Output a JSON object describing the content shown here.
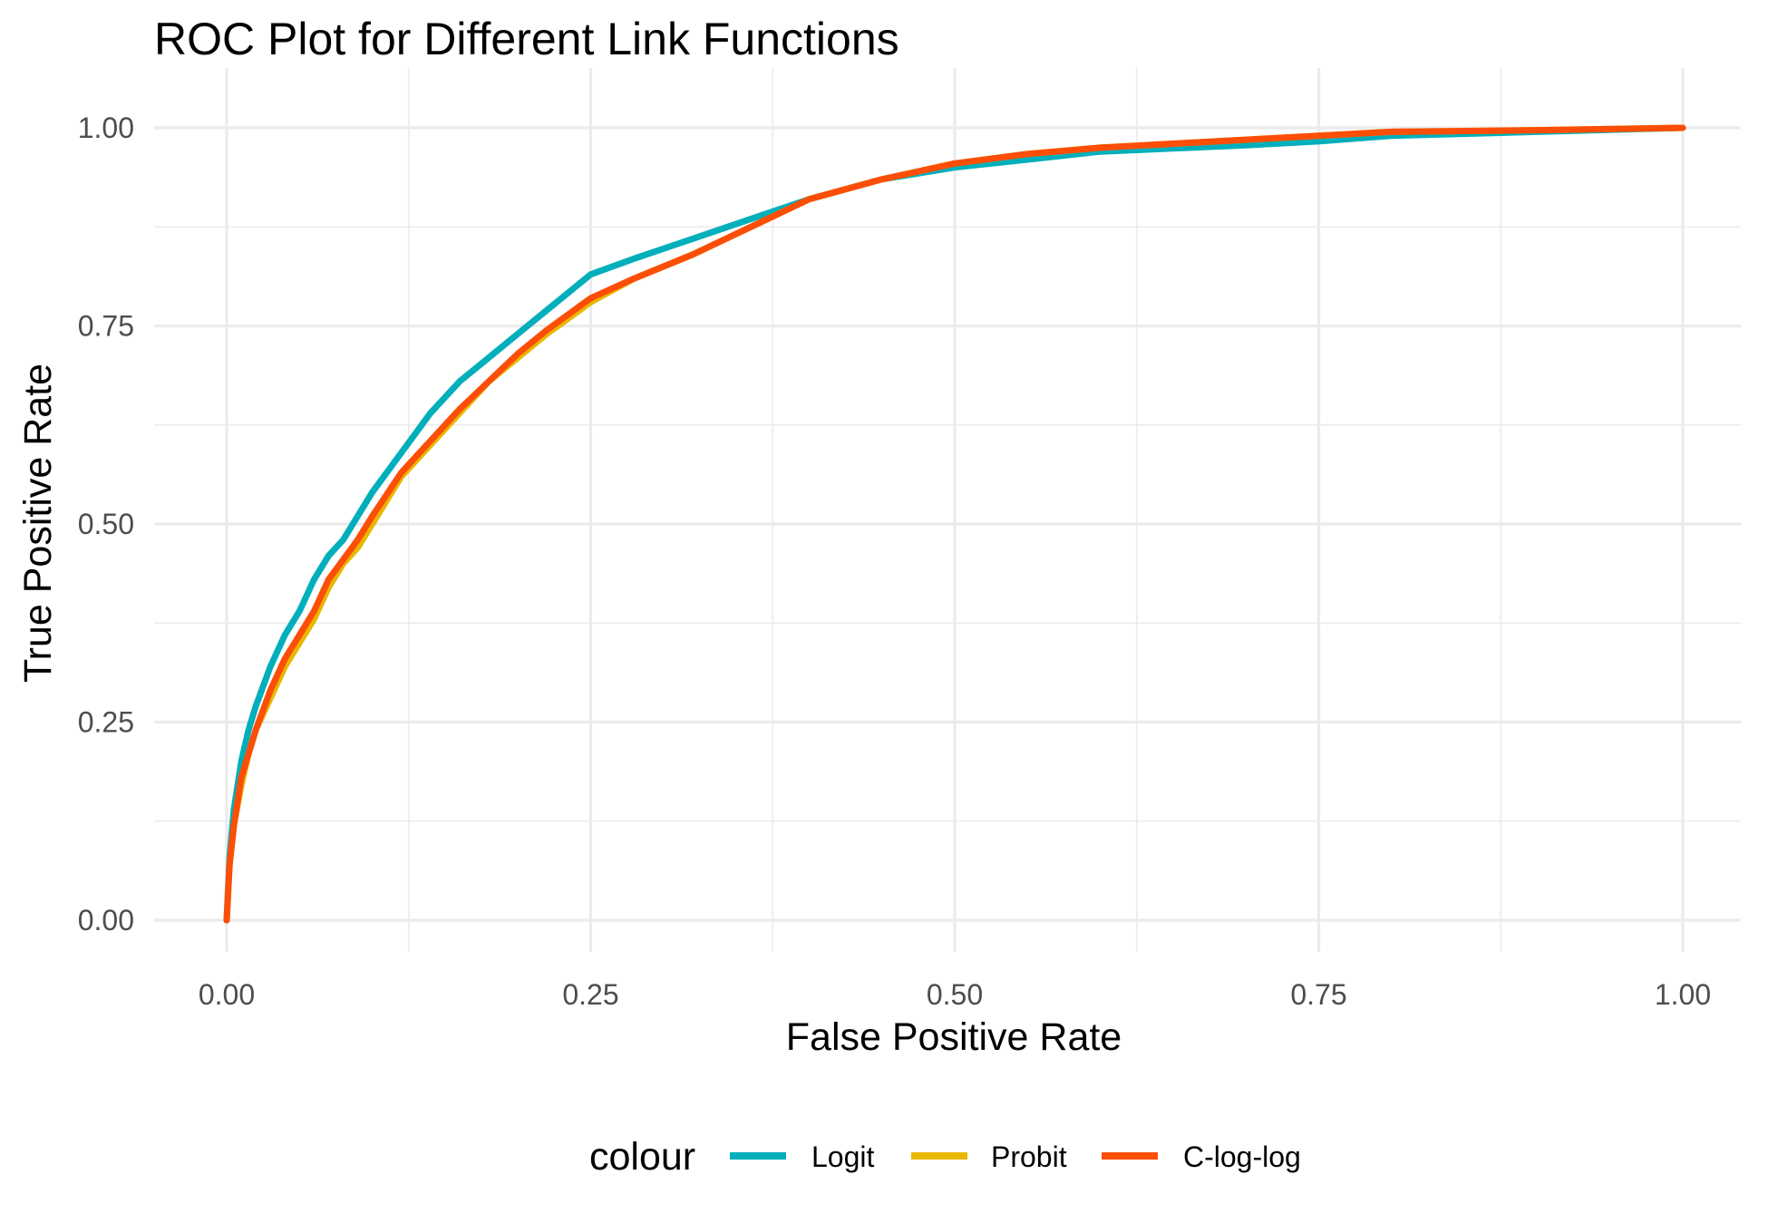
{
  "chart_data": {
    "type": "line",
    "title": "ROC Plot for Different Link Functions",
    "xlabel": "False Positive Rate",
    "ylabel": "True Positive Rate",
    "xlim": [
      0,
      1
    ],
    "ylim": [
      0,
      1
    ],
    "x_ticks": [
      "0.00",
      "0.25",
      "0.50",
      "0.75",
      "1.00"
    ],
    "y_ticks": [
      "0.00",
      "0.25",
      "0.50",
      "0.75",
      "1.00"
    ],
    "grid": true,
    "legend": {
      "title": "colour",
      "position": "bottom"
    },
    "series": [
      {
        "name": "Logit",
        "color": "#00AFBB",
        "points": [
          [
            0.0,
            0.0
          ],
          [
            0.002,
            0.08
          ],
          [
            0.005,
            0.14
          ],
          [
            0.01,
            0.2
          ],
          [
            0.015,
            0.24
          ],
          [
            0.02,
            0.27
          ],
          [
            0.03,
            0.32
          ],
          [
            0.04,
            0.36
          ],
          [
            0.05,
            0.39
          ],
          [
            0.06,
            0.43
          ],
          [
            0.07,
            0.46
          ],
          [
            0.08,
            0.48
          ],
          [
            0.09,
            0.51
          ],
          [
            0.1,
            0.54
          ],
          [
            0.12,
            0.59
          ],
          [
            0.14,
            0.64
          ],
          [
            0.16,
            0.68
          ],
          [
            0.18,
            0.71
          ],
          [
            0.2,
            0.74
          ],
          [
            0.22,
            0.77
          ],
          [
            0.25,
            0.815
          ],
          [
            0.28,
            0.835
          ],
          [
            0.32,
            0.86
          ],
          [
            0.36,
            0.885
          ],
          [
            0.4,
            0.91
          ],
          [
            0.45,
            0.935
          ],
          [
            0.5,
            0.95
          ],
          [
            0.55,
            0.96
          ],
          [
            0.6,
            0.97
          ],
          [
            0.7,
            0.978
          ],
          [
            0.75,
            0.983
          ],
          [
            0.8,
            0.99
          ],
          [
            0.9,
            0.995
          ],
          [
            1.0,
            1.0
          ]
        ]
      },
      {
        "name": "Probit",
        "color": "#E7B800",
        "points": [
          [
            0.0,
            0.0
          ],
          [
            0.002,
            0.07
          ],
          [
            0.005,
            0.12
          ],
          [
            0.01,
            0.17
          ],
          [
            0.015,
            0.21
          ],
          [
            0.02,
            0.24
          ],
          [
            0.03,
            0.28
          ],
          [
            0.04,
            0.32
          ],
          [
            0.05,
            0.35
          ],
          [
            0.06,
            0.38
          ],
          [
            0.07,
            0.42
          ],
          [
            0.08,
            0.45
          ],
          [
            0.09,
            0.47
          ],
          [
            0.1,
            0.5
          ],
          [
            0.12,
            0.56
          ],
          [
            0.14,
            0.6
          ],
          [
            0.16,
            0.64
          ],
          [
            0.18,
            0.68
          ],
          [
            0.2,
            0.71
          ],
          [
            0.22,
            0.74
          ],
          [
            0.25,
            0.78
          ],
          [
            0.28,
            0.81
          ],
          [
            0.32,
            0.84
          ],
          [
            0.36,
            0.875
          ],
          [
            0.4,
            0.91
          ],
          [
            0.45,
            0.935
          ],
          [
            0.5,
            0.955
          ],
          [
            0.55,
            0.967
          ],
          [
            0.6,
            0.975
          ],
          [
            0.7,
            0.985
          ],
          [
            0.75,
            0.99
          ],
          [
            0.8,
            0.995
          ],
          [
            0.9,
            0.997
          ],
          [
            1.0,
            1.0
          ]
        ]
      },
      {
        "name": "C-log-log",
        "color": "#FC4E07",
        "points": [
          [
            0.0,
            0.0
          ],
          [
            0.002,
            0.07
          ],
          [
            0.005,
            0.12
          ],
          [
            0.01,
            0.18
          ],
          [
            0.015,
            0.21
          ],
          [
            0.02,
            0.24
          ],
          [
            0.03,
            0.29
          ],
          [
            0.04,
            0.33
          ],
          [
            0.05,
            0.36
          ],
          [
            0.06,
            0.39
          ],
          [
            0.07,
            0.43
          ],
          [
            0.08,
            0.455
          ],
          [
            0.09,
            0.48
          ],
          [
            0.1,
            0.51
          ],
          [
            0.12,
            0.565
          ],
          [
            0.14,
            0.605
          ],
          [
            0.16,
            0.645
          ],
          [
            0.18,
            0.68
          ],
          [
            0.2,
            0.715
          ],
          [
            0.22,
            0.745
          ],
          [
            0.25,
            0.785
          ],
          [
            0.28,
            0.81
          ],
          [
            0.32,
            0.84
          ],
          [
            0.36,
            0.875
          ],
          [
            0.4,
            0.91
          ],
          [
            0.45,
            0.935
          ],
          [
            0.5,
            0.955
          ],
          [
            0.55,
            0.967
          ],
          [
            0.6,
            0.975
          ],
          [
            0.7,
            0.985
          ],
          [
            0.75,
            0.99
          ],
          [
            0.8,
            0.995
          ],
          [
            0.9,
            0.997
          ],
          [
            1.0,
            1.0
          ]
        ]
      }
    ]
  }
}
